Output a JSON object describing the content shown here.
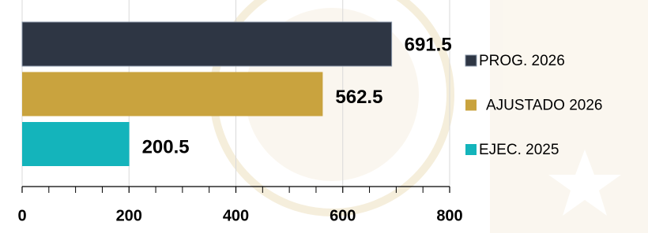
{
  "chart_data": {
    "type": "bar",
    "orientation": "horizontal",
    "series": [
      {
        "name": "PROG. 2026",
        "color": "#2e3644",
        "values": [
          691.5
        ]
      },
      {
        "name": "AJUSTADO 2026",
        "color": "#c9a33e",
        "values": [
          562.5
        ]
      },
      {
        "name": "EJEC. 2025",
        "color": "#14b4bb",
        "values": [
          200.5
        ]
      }
    ],
    "xlim": [
      0,
      800
    ],
    "xticks": [
      0,
      200,
      400,
      600,
      800
    ],
    "xminorticks": [
      50,
      100,
      150,
      250,
      300,
      350,
      450,
      500,
      550,
      650,
      700,
      750
    ],
    "grid": true,
    "legend": "right"
  }
}
